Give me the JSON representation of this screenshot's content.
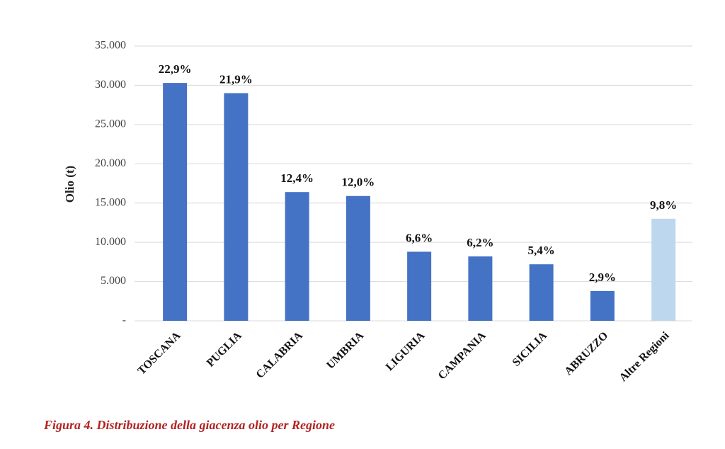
{
  "chart_data": {
    "type": "bar",
    "y_axis_label": "Olio (t)",
    "caption": "Figura 4. Distribuzione della giacenza olio per Regione",
    "categories": [
      "TOSCANA",
      "PUGLIA",
      "CALABRIA",
      "UMBRIA",
      "LIGURIA",
      "CAMPANIA",
      "SICILIA",
      "ABRUZZO",
      "Altre Regioni"
    ],
    "values": [
      30300,
      29000,
      16400,
      15900,
      8800,
      8200,
      7200,
      3800,
      13000
    ],
    "share_labels": [
      "22,9%",
      "21,9%",
      "12,4%",
      "12,0%",
      "6,6%",
      "6,2%",
      "5,4%",
      "2,9%",
      "9,8%"
    ],
    "colors": [
      "#4472c4",
      "#4472c4",
      "#4472c4",
      "#4472c4",
      "#4472c4",
      "#4472c4",
      "#4472c4",
      "#4472c4",
      "#bdd7ee"
    ],
    "ylim": [
      0,
      35000
    ],
    "yticks": [
      {
        "value": 0,
        "label": "-"
      },
      {
        "value": 5000,
        "label": "5.000"
      },
      {
        "value": 10000,
        "label": "10.000"
      },
      {
        "value": 15000,
        "label": "15.000"
      },
      {
        "value": 20000,
        "label": "20.000"
      },
      {
        "value": 25000,
        "label": "25.000"
      },
      {
        "value": 30000,
        "label": "30.000"
      },
      {
        "value": 35000,
        "label": "35.000"
      }
    ],
    "grid": true
  }
}
